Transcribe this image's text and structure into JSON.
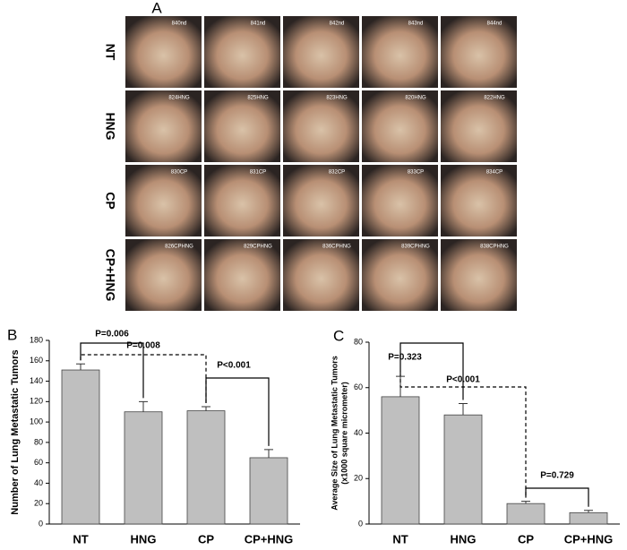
{
  "panel_a": {
    "letter": "A",
    "rows": [
      {
        "label": "NT",
        "samples": [
          "840nd",
          "841nd",
          "842nd",
          "843nd",
          "844nd"
        ]
      },
      {
        "label": "HNG",
        "samples": [
          "824HNG",
          "825HNG",
          "823HNG",
          "820HNG",
          "822HNG"
        ]
      },
      {
        "label": "CP",
        "samples": [
          "830CP",
          "831CP",
          "832CP",
          "833CP",
          "834CP"
        ]
      },
      {
        "label": "CP+HNG",
        "samples": [
          "826CPHNG",
          "829CPHNG",
          "836CPHNG",
          "839CPHNG",
          "838CPHNG"
        ]
      }
    ]
  },
  "chart_data": [
    {
      "type": "bar",
      "letter": "B",
      "y_label": "Number of Lung Metastatic Tumors",
      "categories": [
        "NT",
        "HNG",
        "CP",
        "CP+HNG"
      ],
      "values": [
        151,
        110,
        111,
        65
      ],
      "errors": [
        6,
        10,
        4,
        8
      ],
      "color": "#bfbfbf",
      "ylim": [
        0,
        180
      ],
      "yticks": [
        0,
        20,
        40,
        60,
        80,
        100,
        120,
        140,
        160,
        180
      ],
      "annotations": [
        "P=0.006",
        "P=0.008",
        "P<0.001"
      ]
    },
    {
      "type": "bar",
      "letter": "C",
      "y_label": "Average Size of Lung Metastatic Tumors",
      "y_label_sub": "(x1000 square micrometer)",
      "categories": [
        "NT",
        "HNG",
        "CP",
        "CP+HNG"
      ],
      "values": [
        56,
        48,
        9,
        5
      ],
      "errors": [
        9,
        5,
        1,
        1
      ],
      "color": "#bfbfbf",
      "ylim": [
        0,
        80
      ],
      "yticks": [
        0,
        20,
        40,
        60,
        80
      ],
      "annotations": [
        "P=0.323",
        "P<0.001",
        "P=0.729"
      ]
    }
  ]
}
